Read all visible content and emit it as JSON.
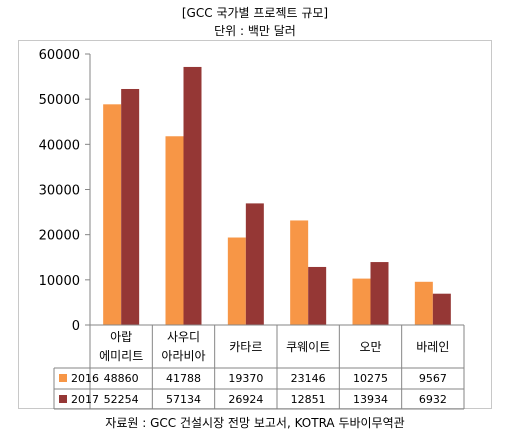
{
  "header": {
    "title": "[GCC 국가별 프로젝트 규모]",
    "unit": "단위 : 백만 달러"
  },
  "footer": {
    "source": "자료원 : GCC 건설시장 전망 보고서, KOTRA 두바이무역관"
  },
  "chart_data": {
    "type": "bar",
    "categories": [
      [
        "아랍",
        "에미리트"
      ],
      [
        "사우디",
        "아라비아"
      ],
      [
        "카타르"
      ],
      [
        "쿠웨이트"
      ],
      [
        "오만"
      ],
      [
        "바레인"
      ]
    ],
    "series": [
      {
        "name": "2016",
        "color": "#f79646",
        "values": [
          48860,
          41788,
          19370,
          23146,
          10275,
          9567
        ]
      },
      {
        "name": "2017",
        "color": "#953735",
        "values": [
          52254,
          57134,
          26924,
          12851,
          13934,
          6932
        ]
      }
    ],
    "ylim": [
      0,
      60000
    ],
    "yticks": [
      "0",
      "10000",
      "20000",
      "30000",
      "40000",
      "50000",
      "60000"
    ],
    "grid": false,
    "legend": "data-table"
  }
}
